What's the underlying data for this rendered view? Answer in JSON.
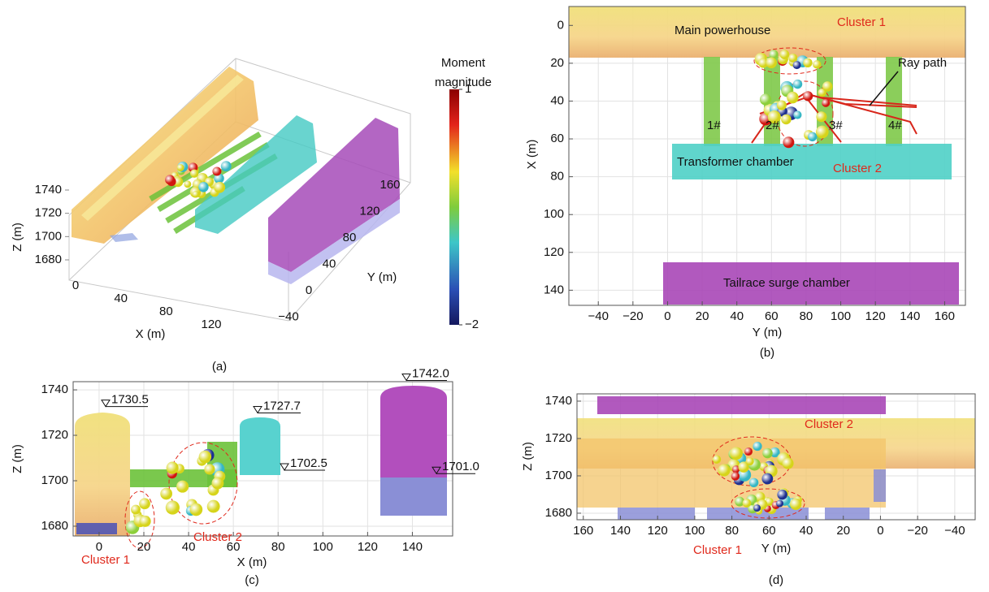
{
  "panel_a": {
    "caption": "(a)",
    "x_label": "X (m)",
    "y_label": "Y (m)",
    "z_label": "Z (m)",
    "xticks": [
      0,
      40,
      80,
      120
    ],
    "yticks": [
      {
        "value": -40,
        "label": "−40"
      },
      0,
      40,
      80,
      120,
      160
    ],
    "zticks": [
      1680,
      1700,
      1720,
      1740
    ],
    "colorbar": {
      "title": [
        "Moment",
        "magnitude"
      ],
      "range": [
        -2,
        1
      ],
      "ticks": [
        1,
        {
          "value": -2,
          "label": "−2"
        }
      ]
    }
  },
  "panel_b": {
    "caption": "(b)",
    "x_label": "Y (m)",
    "y_label": "X (m)",
    "xlim": [
      -57,
      172
    ],
    "ylim": [
      -10,
      148
    ],
    "xticks": [
      {
        "value": -40,
        "label": "−40"
      },
      {
        "value": -20,
        "label": "−20"
      },
      0,
      20,
      40,
      60,
      80,
      100,
      120,
      140,
      160
    ],
    "yticks": [
      0,
      20,
      40,
      60,
      80,
      100,
      120,
      140
    ],
    "annotations": {
      "main": "Main powerhouse",
      "cluster1": "Cluster 1",
      "ray": "Ray path",
      "cluster2": "Cluster 2",
      "transformer": "Transformer chamber",
      "tailrace": "Tailrace surge chamber",
      "pipes": [
        "1#",
        "2#",
        "3#",
        "4#"
      ]
    }
  },
  "panel_c": {
    "caption": "(c)",
    "x_label": "X (m)",
    "y_label": "Z (m)",
    "xlim": [
      -11.6,
      158
    ],
    "ylim": [
      1675.7,
      1743.6
    ],
    "xticks": [
      0,
      20,
      40,
      60,
      80,
      100,
      120,
      140
    ],
    "yticks": [
      1680,
      1700,
      1720,
      1740
    ],
    "elevations": [
      1730.5,
      1727.7,
      1702.5,
      {
        "value": 1742,
        "label": "1742.0"
      },
      {
        "value": 1701,
        "label": "1701.0"
      }
    ],
    "annotations": {
      "cluster1": "Cluster 1",
      "cluster2": "Cluster 2"
    }
  },
  "panel_d": {
    "caption": "(d)",
    "x_label": "Y (m)",
    "y_label": "Z (m)",
    "xlim": [
      163.4,
      -51
    ],
    "ylim": [
      1676.5,
      1743.9
    ],
    "xticks": [
      160,
      140,
      120,
      100,
      80,
      60,
      40,
      20,
      0,
      {
        "value": -20,
        "label": "−20"
      },
      {
        "value": -40,
        "label": "−40"
      }
    ],
    "yticks": [
      1680,
      1700,
      1720,
      1740
    ],
    "annotations": {
      "cluster1": "Cluster 1",
      "cluster2": "Cluster 2"
    }
  }
}
